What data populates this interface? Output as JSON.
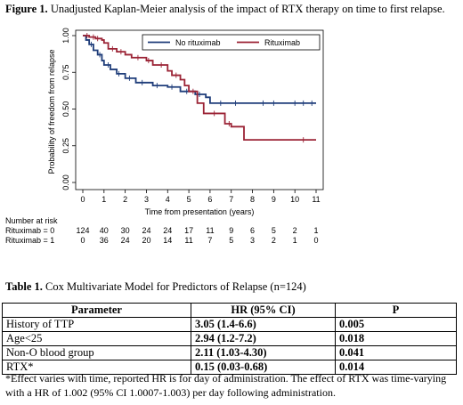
{
  "figure": {
    "label": "Figure 1.",
    "caption": "Unadjusted Kaplan-Meier analysis of the impact of RTX therapy on time to first relapse."
  },
  "chart_data": {
    "type": "line",
    "subtype": "kaplan-meier step curve",
    "xlabel": "Time from presentation (years)",
    "ylabel": "Probability of freedom from relapse",
    "xlim": [
      0,
      11
    ],
    "ylim": [
      0,
      1
    ],
    "x_ticks": [
      "0",
      "1",
      "2",
      "3",
      "4",
      "5",
      "6",
      "7",
      "8",
      "9",
      "10",
      "11"
    ],
    "y_ticks": [
      "0.00",
      "0.25",
      "0.50",
      "0.75",
      "1.00"
    ],
    "grid": false,
    "legend_position": "top-right",
    "series": [
      {
        "name": "No rituximab",
        "color": "#1f3d7a",
        "steps": [
          [
            0,
            1.0
          ],
          [
            0.15,
            0.97
          ],
          [
            0.3,
            0.94
          ],
          [
            0.5,
            0.9
          ],
          [
            0.7,
            0.87
          ],
          [
            0.9,
            0.83
          ],
          [
            1.0,
            0.8
          ],
          [
            1.3,
            0.77
          ],
          [
            1.6,
            0.74
          ],
          [
            2.0,
            0.71
          ],
          [
            2.5,
            0.68
          ],
          [
            3.3,
            0.66
          ],
          [
            4.0,
            0.65
          ],
          [
            4.6,
            0.62
          ],
          [
            5.3,
            0.6
          ],
          [
            5.8,
            0.58
          ],
          [
            6.0,
            0.54
          ],
          [
            11.0,
            0.54
          ]
        ],
        "censor_times": [
          0.4,
          0.8,
          1.2,
          1.7,
          2.2,
          2.8,
          3.5,
          4.2,
          4.9,
          5.5,
          6.5,
          7.2,
          8.5,
          9.0,
          10.0,
          10.4,
          10.8
        ]
      },
      {
        "name": "Rituximab",
        "color": "#9b2335",
        "steps": [
          [
            0,
            1.0
          ],
          [
            0.3,
            0.99
          ],
          [
            0.6,
            0.98
          ],
          [
            0.9,
            0.97
          ],
          [
            1.0,
            0.95
          ],
          [
            1.2,
            0.91
          ],
          [
            1.6,
            0.89
          ],
          [
            2.0,
            0.87
          ],
          [
            2.3,
            0.85
          ],
          [
            3.0,
            0.83
          ],
          [
            3.3,
            0.8
          ],
          [
            4.0,
            0.76
          ],
          [
            4.2,
            0.73
          ],
          [
            4.6,
            0.7
          ],
          [
            4.8,
            0.66
          ],
          [
            5.0,
            0.62
          ],
          [
            5.4,
            0.54
          ],
          [
            5.7,
            0.47
          ],
          [
            6.7,
            0.4
          ],
          [
            7.0,
            0.38
          ],
          [
            7.6,
            0.29
          ],
          [
            11.0,
            0.29
          ]
        ],
        "censor_times": [
          0.2,
          0.5,
          0.7,
          1.4,
          1.8,
          2.6,
          3.1,
          3.7,
          4.4,
          5.2,
          6.2,
          6.9,
          10.4
        ]
      }
    ],
    "risk_table": {
      "header": "Number at risk",
      "rows": [
        {
          "label": "Rituximab = 0",
          "values": [
            "124",
            "40",
            "30",
            "24",
            "24",
            "17",
            "11",
            "9",
            "6",
            "5",
            "2",
            "1"
          ]
        },
        {
          "label": "Rituximab = 1",
          "values": [
            "0",
            "36",
            "24",
            "20",
            "14",
            "11",
            "7",
            "5",
            "3",
            "2",
            "1",
            "0"
          ]
        }
      ]
    }
  },
  "table": {
    "caption_label": "Table 1.",
    "caption_text": "Cox Multivariate Model for Predictors of Relapse (n=124)",
    "headers": [
      "Parameter",
      "HR (95% CI)",
      "P"
    ],
    "rows": [
      [
        "History of TTP",
        "3.05 (1.4-6.6)",
        "0.005"
      ],
      [
        "Age<25",
        "2.94 (1.2-7.2)",
        "0.018"
      ],
      [
        "Non-O blood group",
        "2.11 (1.03-4.30)",
        "0.041"
      ],
      [
        "RTX*",
        "0.15 (0.03-0.68)",
        "0.014"
      ]
    ],
    "footnote": "*Effect varies with time, reported HR is for day of administration. The effect of RTX was time-varying with a HR of 1.002 (95% CI 1.0007-1.003) per day following administration."
  }
}
